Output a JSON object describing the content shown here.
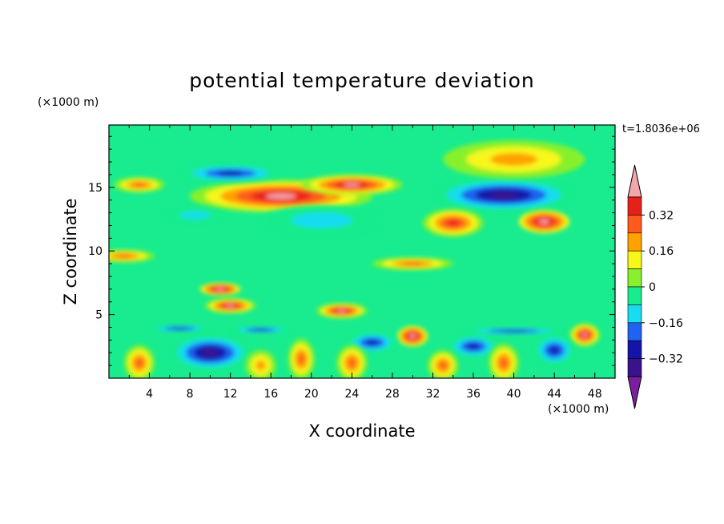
{
  "chart_data": {
    "type": "heatmap",
    "title": "potential temperature deviation",
    "xlabel": "X coordinate",
    "ylabel": "Z coordinate",
    "x_unit": "(×1000 m)",
    "z_unit": "(×1000 m)",
    "time_label": "t=1.8036e+06",
    "xlim": [
      0,
      50
    ],
    "zlim": [
      0,
      19.9
    ],
    "x_ticks": [
      4,
      8,
      12,
      16,
      20,
      24,
      28,
      32,
      36,
      40,
      44,
      48
    ],
    "z_ticks": [
      5,
      10,
      15
    ],
    "colorbar": {
      "levels": [
        -0.4,
        -0.32,
        -0.24,
        -0.16,
        -0.08,
        0,
        0.08,
        0.16,
        0.24,
        0.32,
        0.4
      ],
      "tick_labels": [
        -0.32,
        -0.16,
        0,
        0.16,
        0.32
      ],
      "colors": [
        "#7b1fa2",
        "#3a128e",
        "#1414a8",
        "#1f63f0",
        "#18dcf0",
        "#18ec8e",
        "#88f02c",
        "#f7f71a",
        "#ffa200",
        "#ff5a1e",
        "#e8201a",
        "#f5a6aa"
      ],
      "extend": "both"
    },
    "features": [
      {
        "x": 17,
        "z": 14.3,
        "rx": 9,
        "rz": 1.3,
        "value": 0.45
      },
      {
        "x": 24,
        "z": 15.2,
        "rx": 5,
        "rz": 0.8,
        "value": 0.45
      },
      {
        "x": 12,
        "z": 16.1,
        "rx": 5,
        "rz": 0.7,
        "value": -0.3
      },
      {
        "x": 39,
        "z": 14.4,
        "rx": 7,
        "rz": 1.3,
        "value": -0.36
      },
      {
        "x": 40,
        "z": 17.2,
        "rx": 7,
        "rz": 1.5,
        "value": 0.22
      },
      {
        "x": 21,
        "z": 12.4,
        "rx": 6,
        "rz": 1.2,
        "value": -0.16
      },
      {
        "x": 34,
        "z": 12.2,
        "rx": 3,
        "rz": 1.1,
        "value": 0.36
      },
      {
        "x": 43,
        "z": 12.3,
        "rx": 2.5,
        "rz": 0.9,
        "value": 0.4
      },
      {
        "x": 8.5,
        "z": 12.8,
        "rx": 3,
        "rz": 0.6,
        "value": -0.1
      },
      {
        "x": 3,
        "z": 15.2,
        "rx": 2.5,
        "rz": 0.6,
        "value": 0.3
      },
      {
        "x": 1.5,
        "z": 9.6,
        "rx": 3,
        "rz": 0.5,
        "value": 0.3
      },
      {
        "x": 30,
        "z": 9.0,
        "rx": 4,
        "rz": 0.5,
        "value": 0.3
      },
      {
        "x": 11,
        "z": 7.0,
        "rx": 2,
        "rz": 0.5,
        "value": 0.4
      },
      {
        "x": 12,
        "z": 5.7,
        "rx": 2.5,
        "rz": 0.6,
        "value": 0.45
      },
      {
        "x": 23,
        "z": 5.3,
        "rx": 2.5,
        "rz": 0.6,
        "value": 0.42
      },
      {
        "x": 30,
        "z": 3.3,
        "rx": 1.5,
        "rz": 0.8,
        "value": 0.4
      },
      {
        "x": 47,
        "z": 3.4,
        "rx": 1.5,
        "rz": 0.9,
        "value": 0.42
      },
      {
        "x": 10,
        "z": 2.0,
        "rx": 4,
        "rz": 1.4,
        "value": -0.34
      },
      {
        "x": 26,
        "z": 2.8,
        "rx": 2.5,
        "rz": 0.8,
        "value": -0.3
      },
      {
        "x": 36,
        "z": 2.5,
        "rx": 2.5,
        "rz": 0.9,
        "value": -0.3
      },
      {
        "x": 44,
        "z": 2.2,
        "rx": 2,
        "rz": 1.2,
        "value": -0.32
      },
      {
        "x": 19,
        "z": 1.5,
        "rx": 1.3,
        "rz": 1.6,
        "value": 0.3
      },
      {
        "x": 3,
        "z": 1.2,
        "rx": 1.5,
        "rz": 1.4,
        "value": 0.28
      },
      {
        "x": 24,
        "z": 1.2,
        "rx": 1.5,
        "rz": 1.4,
        "value": 0.3
      },
      {
        "x": 33,
        "z": 1.0,
        "rx": 1.5,
        "rz": 1.2,
        "value": 0.25
      },
      {
        "x": 39,
        "z": 1.2,
        "rx": 1.5,
        "rz": 1.5,
        "value": 0.3
      },
      {
        "x": 15,
        "z": 1.0,
        "rx": 1.5,
        "rz": 1.2,
        "value": 0.22
      },
      {
        "x": 7,
        "z": 3.9,
        "rx": 3,
        "rz": 0.3,
        "value": -0.3
      },
      {
        "x": 40,
        "z": 3.7,
        "rx": 5,
        "rz": 0.3,
        "value": -0.25
      },
      {
        "x": 15,
        "z": 3.8,
        "rx": 3,
        "rz": 0.3,
        "value": -0.28
      }
    ]
  }
}
